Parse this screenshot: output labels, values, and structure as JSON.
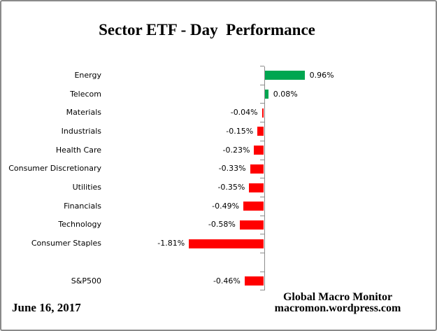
{
  "chart_data": {
    "type": "bar",
    "orientation": "horizontal",
    "title": "Sector ETF - Day  Performance",
    "xlabel": "",
    "ylabel": "",
    "value_unit": "%",
    "baseline": 0,
    "value_labels_position": "outside-end",
    "grid": false,
    "legend": false,
    "colors": {
      "positive_bar": "#00A650",
      "negative_bar": "#FF0000",
      "axis": "#8C8C8C",
      "text": "#000000",
      "frame_border": "#8A8A8A",
      "background": "#FFFFFF"
    },
    "items": [
      {
        "label": "Energy",
        "value": 0.96,
        "display": "0.96%"
      },
      {
        "label": "Telecom",
        "value": 0.08,
        "display": "0.08%"
      },
      {
        "label": "Materials",
        "value": -0.04,
        "display": "-0.04%"
      },
      {
        "label": "Industrials",
        "value": -0.15,
        "display": "-0.15%"
      },
      {
        "label": "Health Care",
        "value": -0.23,
        "display": "-0.23%"
      },
      {
        "label": "Consumer Discretionary",
        "value": -0.33,
        "display": "-0.33%"
      },
      {
        "label": "Utilities",
        "value": -0.35,
        "display": "-0.35%"
      },
      {
        "label": "Financials",
        "value": -0.49,
        "display": "-0.49%"
      },
      {
        "label": "Technology",
        "value": -0.58,
        "display": "-0.58%"
      },
      {
        "label": "Consumer Staples",
        "value": -1.81,
        "display": "-1.81%"
      },
      {
        "spacer": true,
        "label": "",
        "value": null,
        "display": ""
      },
      {
        "label": "S&P500",
        "value": -0.46,
        "display": "-0.46%"
      }
    ]
  },
  "footer": {
    "date": "June 16, 2017",
    "attribution_line1": "Global Macro Monitor",
    "attribution_line2": "macromon.wordpress.com"
  }
}
